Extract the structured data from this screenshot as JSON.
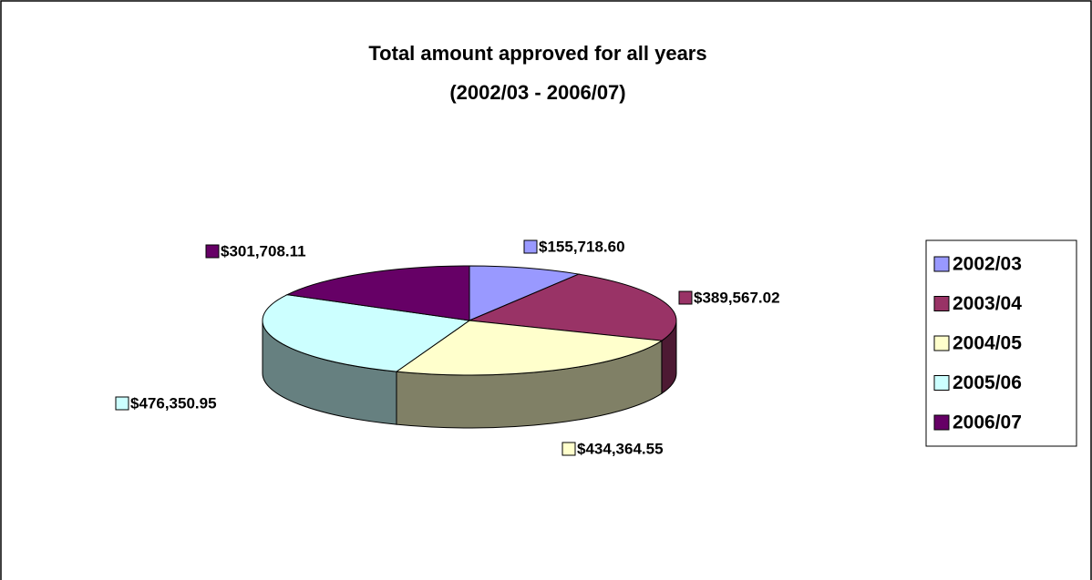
{
  "chart_data": {
    "type": "pie",
    "title": "Total amount approved for all years",
    "subtitle": "(2002/03 - 2006/07)",
    "categories": [
      "2002/03",
      "2003/04",
      "2004/05",
      "2005/06",
      "2006/07"
    ],
    "values": [
      155718.6,
      389567.02,
      434364.55,
      476350.95,
      301708.11
    ],
    "value_labels": [
      "$155,718.60",
      "$389,567.02",
      "$434,364.55",
      "$476,350.95",
      "$301,708.11"
    ],
    "colors": [
      "#9999ff",
      "#993366",
      "#ffffcc",
      "#ccffff",
      "#660066"
    ],
    "legend": "right"
  }
}
